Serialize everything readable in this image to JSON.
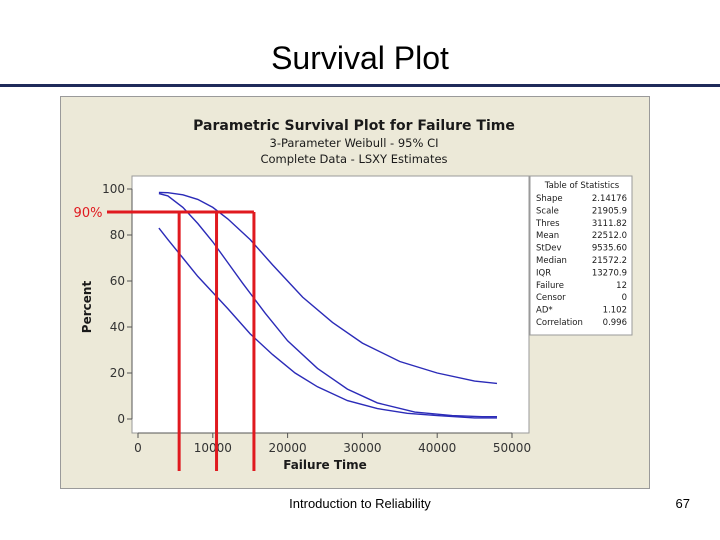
{
  "slide": {
    "title": "Survival Plot",
    "footer": "Introduction to Reliability",
    "page_number": "67"
  },
  "chart_data": {
    "type": "line",
    "title": "Parametric Survival Plot for Failure Time",
    "subtitle_lines": [
      "3-Parameter Weibull - 95% CI",
      "Complete Data - LSXY Estimates"
    ],
    "xlabel": "Failure Time",
    "ylabel": "Percent",
    "xlim": [
      0,
      50000
    ],
    "ylim": [
      0,
      100
    ],
    "x_ticks": [
      0,
      10000,
      20000,
      30000,
      40000,
      50000
    ],
    "x_tick_labels": [
      "0",
      "10000",
      "20000",
      "30000",
      "40000",
      "50000"
    ],
    "y_ticks": [
      0,
      20,
      40,
      60,
      80,
      100
    ],
    "y_tick_labels": [
      "0",
      "20",
      "40",
      "60",
      "80",
      "100"
    ],
    "grid": false,
    "line_color": "#2b2bb8",
    "series": [
      {
        "x": [
          2800,
          4000,
          6000,
          8000,
          10000,
          12000,
          15000,
          18000,
          22000,
          26000,
          30000,
          35000,
          40000,
          45000,
          48000
        ],
        "y": [
          98.5,
          98.4,
          97.5,
          95.5,
          92,
          87,
          78,
          67,
          53,
          42,
          33,
          25,
          20,
          16.5,
          15.5
        ]
      },
      {
        "x": [
          2800,
          4000,
          6000,
          8000,
          10000,
          12000,
          14000,
          17000,
          20000,
          24000,
          28000,
          32000,
          37000,
          42000,
          46000,
          48000
        ],
        "y": [
          98,
          97,
          92,
          85,
          77,
          68,
          59,
          46,
          34,
          22,
          13,
          7,
          3,
          1.5,
          1,
          1
        ]
      },
      {
        "x": [
          2800,
          4000,
          6000,
          8000,
          10000,
          12000,
          15000,
          18000,
          21000,
          24000,
          28000,
          32000,
          36000,
          40000,
          45000,
          48000
        ],
        "y": [
          83,
          78,
          70,
          62,
          55,
          48,
          37,
          28,
          20,
          14,
          8,
          4.5,
          2.5,
          1.5,
          0.5,
          0.5
        ]
      }
    ],
    "annotation": {
      "label": "90%",
      "color": "#e0191f",
      "y": 90,
      "x_values": [
        5500,
        10500,
        15500
      ]
    },
    "stats_table": {
      "title": "Table of Statistics",
      "rows": [
        [
          "Shape",
          "2.14176"
        ],
        [
          "Scale",
          "21905.9"
        ],
        [
          "Thres",
          "3111.82"
        ],
        [
          "Mean",
          "22512.0"
        ],
        [
          "StDev",
          "9535.60"
        ],
        [
          "Median",
          "21572.2"
        ],
        [
          "IQR",
          "13270.9"
        ],
        [
          "Failure",
          "12"
        ],
        [
          "Censor",
          "0"
        ],
        [
          "AD*",
          "1.102"
        ],
        [
          "Correlation",
          "0.996"
        ]
      ]
    }
  }
}
